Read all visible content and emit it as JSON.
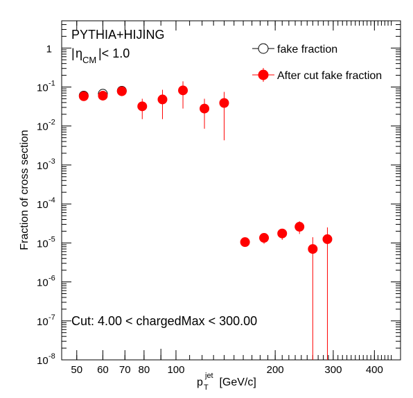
{
  "chart_data": {
    "type": "scatter",
    "title": "",
    "xlabel": {
      "main": "p",
      "sub": "T",
      "sup": "jet",
      "unit": " [GeV/c]"
    },
    "ylabel": "Fraction of cross section",
    "x_scale": "log",
    "y_scale": "log",
    "xlim": [
      45,
      480
    ],
    "ylim": [
      1e-08,
      5
    ],
    "x_ticks": [
      {
        "value": 50,
        "label": "50"
      },
      {
        "value": 60,
        "label": "60"
      },
      {
        "value": 70,
        "label": "70"
      },
      {
        "value": 80,
        "label": "80"
      },
      {
        "value": 100,
        "label": "100"
      },
      {
        "value": 200,
        "label": "200"
      },
      {
        "value": 300,
        "label": "300"
      },
      {
        "value": 400,
        "label": "400"
      }
    ],
    "y_ticks": [
      {
        "value": 1e-08,
        "base": "10",
        "exp": "-8"
      },
      {
        "value": 1e-07,
        "base": "10",
        "exp": "-7"
      },
      {
        "value": 1e-06,
        "base": "10",
        "exp": "-6"
      },
      {
        "value": 1e-05,
        "base": "10",
        "exp": "-5"
      },
      {
        "value": 0.0001,
        "base": "10",
        "exp": "-4"
      },
      {
        "value": 0.001,
        "base": "10",
        "exp": "-3"
      },
      {
        "value": 0.01,
        "base": "10",
        "exp": "-2"
      },
      {
        "value": 0.1,
        "base": "10",
        "exp": "-1"
      },
      {
        "value": 1,
        "base": "1",
        "exp": ""
      }
    ],
    "annotations": {
      "generator": "PYTHIA+HIJING",
      "eta_cut": {
        "pre": "|",
        "eta": "η",
        "sub": "CM",
        "post": "|< 1.0"
      },
      "cut": "Cut: 4.00 < chargedMax < 300.00"
    },
    "legend": {
      "position": "top-right"
    },
    "grid": false,
    "series": [
      {
        "name": "fake fraction",
        "marker": "open-circle",
        "color": "#000000",
        "points": [
          {
            "x": 52.5,
            "y": 0.06,
            "ylo": 0.052,
            "yhi": 0.069
          },
          {
            "x": 60.0,
            "y": 0.067,
            "ylo": 0.058,
            "yhi": 0.077
          },
          {
            "x": 68.5,
            "y": 0.08,
            "ylo": 0.068,
            "yhi": 0.094
          }
        ]
      },
      {
        "name": "After cut fake fraction",
        "marker": "filled-circle",
        "color": "#ff0000",
        "points": [
          {
            "x": 52.5,
            "y": 0.058,
            "ylo": 0.05,
            "yhi": 0.067
          },
          {
            "x": 60.0,
            "y": 0.06,
            "ylo": 0.052,
            "yhi": 0.07
          },
          {
            "x": 68.5,
            "y": 0.078,
            "ylo": 0.066,
            "yhi": 0.092
          },
          {
            "x": 79.0,
            "y": 0.032,
            "ylo": 0.015,
            "yhi": 0.05
          },
          {
            "x": 91.0,
            "y": 0.048,
            "ylo": 0.015,
            "yhi": 0.085
          },
          {
            "x": 105.0,
            "y": 0.082,
            "ylo": 0.028,
            "yhi": 0.14
          },
          {
            "x": 122.0,
            "y": 0.028,
            "ylo": 0.0085,
            "yhi": 0.05
          },
          {
            "x": 140.0,
            "y": 0.039,
            "ylo": 0.0043,
            "yhi": 0.075
          },
          {
            "x": 162.0,
            "y": 1.05e-05,
            "ylo": 9.3e-06,
            "yhi": 1.2e-05
          },
          {
            "x": 185.0,
            "y": 1.35e-05,
            "ylo": 9.5e-06,
            "yhi": 1.75e-05
          },
          {
            "x": 210.0,
            "y": 1.75e-05,
            "ylo": 1.2e-05,
            "yhi": 2.3e-05
          },
          {
            "x": 237.0,
            "y": 2.6e-05,
            "ylo": 1.7e-05,
            "yhi": 3.6e-05
          },
          {
            "x": 260.0,
            "y": 7e-06,
            "ylo": 1e-08,
            "yhi": 1.4e-05
          },
          {
            "x": 288.0,
            "y": 1.25e-05,
            "ylo": 1e-08,
            "yhi": 2.5e-05
          }
        ]
      }
    ]
  }
}
